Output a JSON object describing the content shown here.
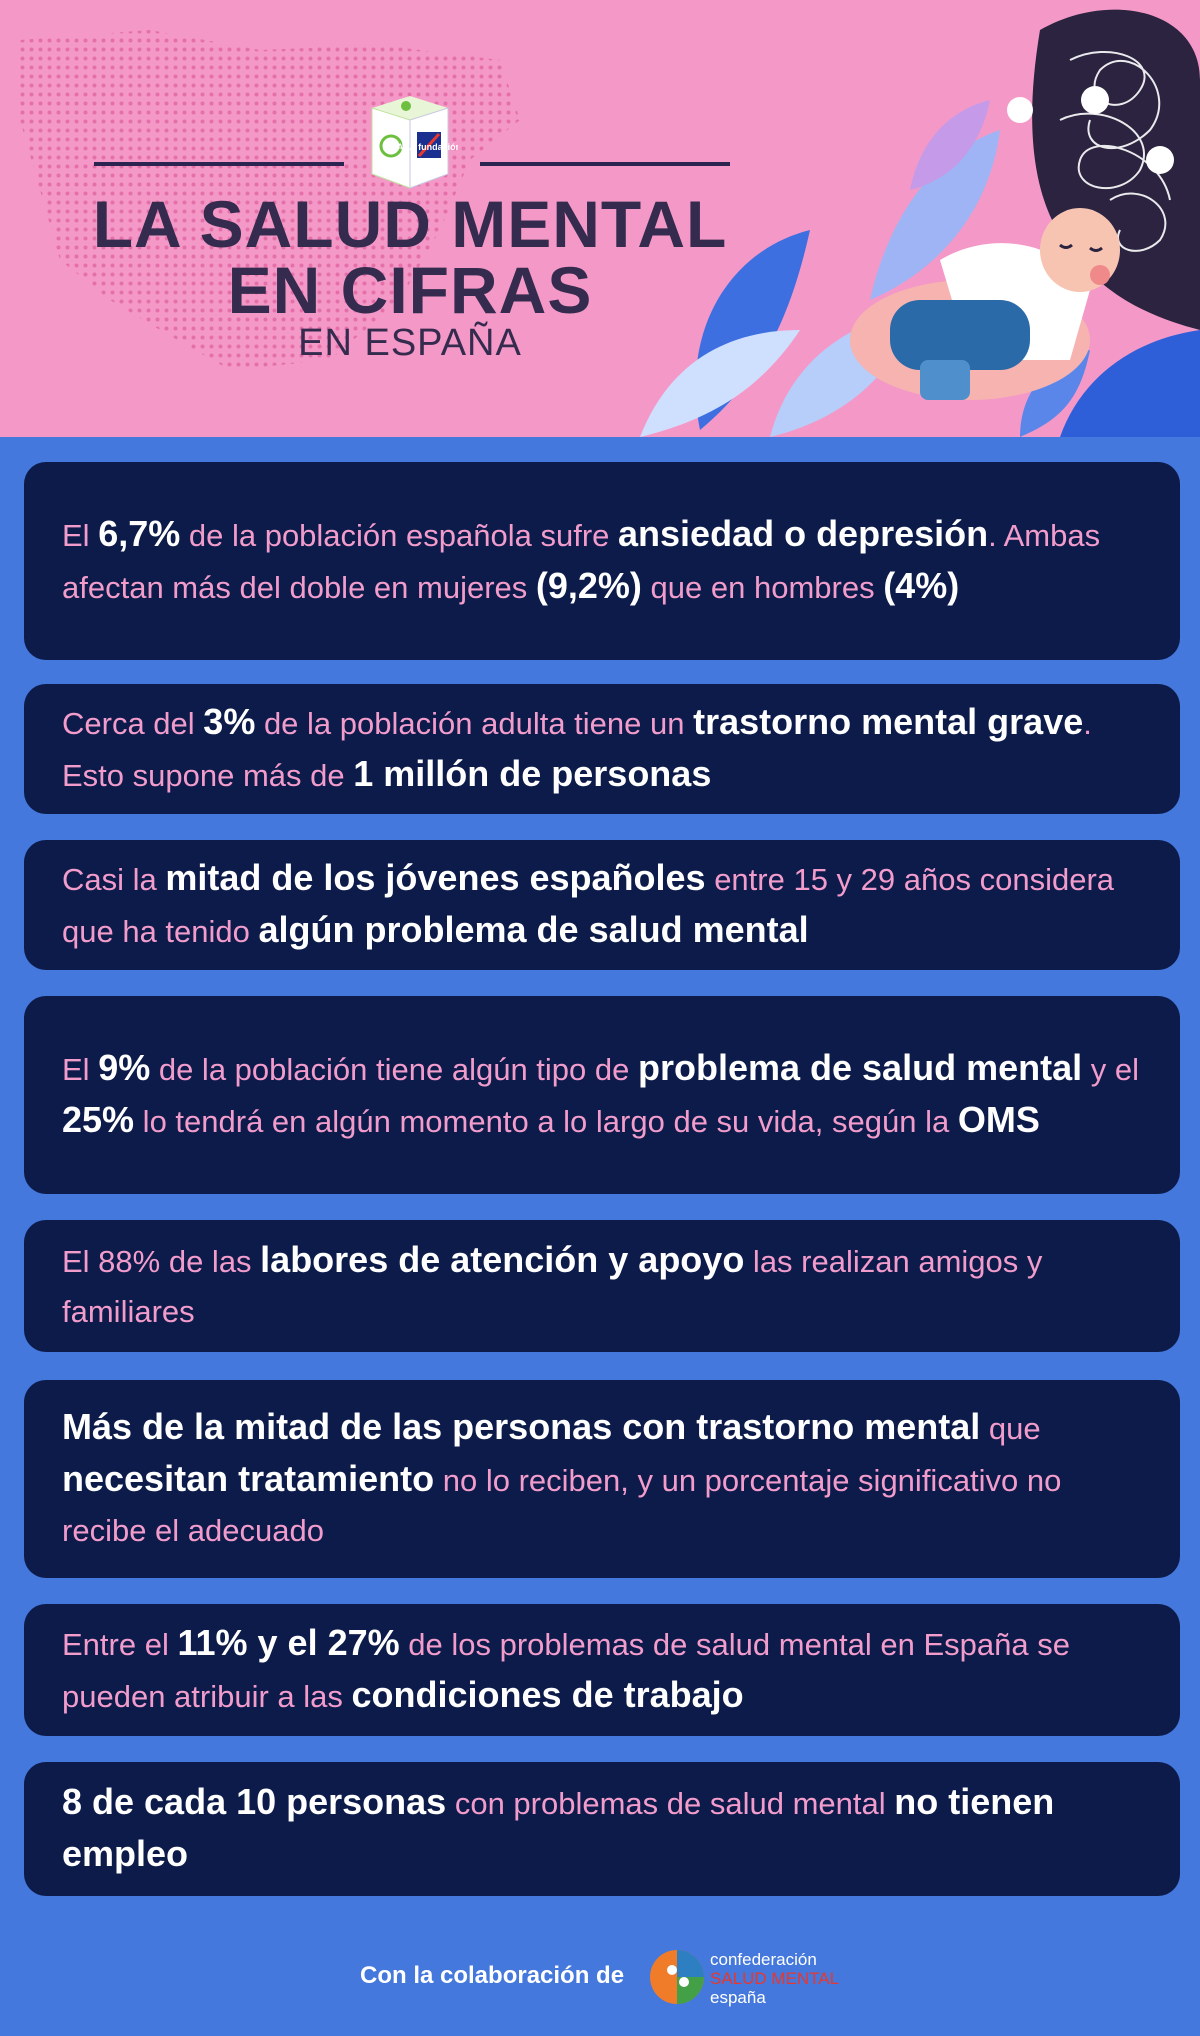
{
  "header": {
    "logo_label": "AXA fundación",
    "title_line1": "LA SALUD MENTAL",
    "title_line2": "EN CIFRAS",
    "subtitle": "EN ESPAÑA"
  },
  "cards": [
    {
      "segments": [
        {
          "t": "El ",
          "b": false
        },
        {
          "t": "6,7%",
          "b": true
        },
        {
          "t": " de la población española sufre ",
          "b": false
        },
        {
          "t": "ansiedad o depresión",
          "b": true
        },
        {
          "t": ". Ambas afectan más del doble en mujeres ",
          "b": false
        },
        {
          "t": "(9,2%)",
          "b": true
        },
        {
          "t": " que en hombres ",
          "b": false
        },
        {
          "t": "(4%)",
          "b": true
        }
      ]
    },
    {
      "segments": [
        {
          "t": "Cerca del ",
          "b": false
        },
        {
          "t": "3%",
          "b": true
        },
        {
          "t": "  de la población adulta tiene un ",
          "b": false
        },
        {
          "t": "trastorno mental grave",
          "b": true
        },
        {
          "t": ". Esto supone más de ",
          "b": false
        },
        {
          "t": "1 millón de personas",
          "b": true
        }
      ]
    },
    {
      "segments": [
        {
          "t": "Casi la ",
          "b": false
        },
        {
          "t": "mitad de los jóvenes españoles",
          "b": true
        },
        {
          "t": " entre 15 y 29 años considera que ha tenido ",
          "b": false
        },
        {
          "t": "algún problema de salud mental",
          "b": true
        }
      ]
    },
    {
      "segments": [
        {
          "t": "El ",
          "b": false
        },
        {
          "t": "9%",
          "b": true
        },
        {
          "t": " de la población tiene algún tipo de ",
          "b": false
        },
        {
          "t": "problema de salud mental",
          "b": true
        },
        {
          "t": " y el ",
          "b": false
        },
        {
          "t": "25%",
          "b": true
        },
        {
          "t": " lo tendrá en algún momento a lo largo de su vida, según la ",
          "b": false
        },
        {
          "t": "OMS",
          "b": true
        }
      ]
    },
    {
      "segments": [
        {
          "t": "El 88% de las ",
          "b": false
        },
        {
          "t": "labores de atención y apoyo",
          "b": true
        },
        {
          "t": " las realizan amigos y familiares",
          "b": false
        }
      ]
    },
    {
      "segments": [
        {
          "t": "Más de la mitad de las personas con trastorno mental",
          "b": true
        },
        {
          "t": " que ",
          "b": false
        },
        {
          "t": "necesitan tratamiento",
          "b": true
        },
        {
          "t": " no lo reciben, y un porcentaje significativo no recibe el adecuado",
          "b": false
        }
      ]
    },
    {
      "segments": [
        {
          "t": "Entre el ",
          "b": false
        },
        {
          "t": "11% y el 27%",
          "b": true
        },
        {
          "t": " de los problemas de salud mental en España se pueden atribuir a las ",
          "b": false
        },
        {
          "t": "condiciones de trabajo",
          "b": true
        }
      ]
    },
    {
      "segments": [
        {
          "t": "8 de cada 10 personas",
          "b": true
        },
        {
          "t": " con problemas de salud mental ",
          "b": false
        },
        {
          "t": "no tienen empleo",
          "b": true
        }
      ]
    }
  ],
  "footer": {
    "collab_text": "Con la colaboración de",
    "conf_line1": "confederación",
    "conf_line2": "SALUD MENTAL",
    "conf_line3": "españa"
  },
  "colors": {
    "header_bg": "#f499c7",
    "page_bg": "#4478dc",
    "card_bg": "#0c1b4a",
    "pink_text": "#f29ccc",
    "bold_text": "#ffffff"
  }
}
